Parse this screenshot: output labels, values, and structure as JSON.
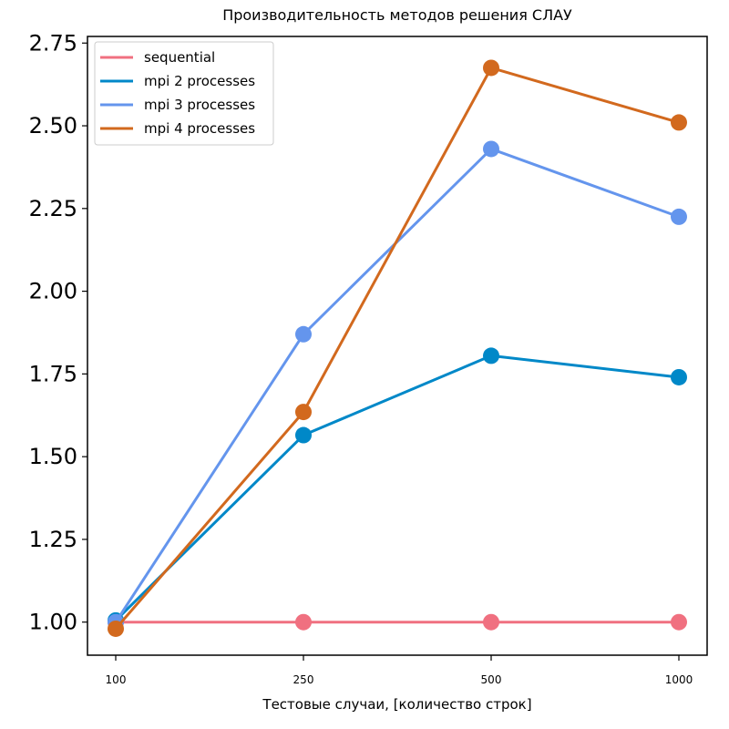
{
  "chart_data": {
    "type": "line",
    "title": "Производительность методов решения СЛАУ",
    "xlabel": "Тестовые случаи, [количество строк]",
    "ylabel": "",
    "categories": [
      "100",
      "250",
      "500",
      "1000"
    ],
    "ylim": [
      0.9,
      2.77
    ],
    "yticks": [
      "1.00",
      "1.25",
      "1.50",
      "1.75",
      "2.00",
      "2.25",
      "2.50",
      "2.75"
    ],
    "grid": false,
    "legend_position": "top-left",
    "series": [
      {
        "name": "sequential",
        "color": "#f07080",
        "values": [
          1.0,
          1.0,
          1.0,
          1.0
        ]
      },
      {
        "name": "mpi 2 processes",
        "color": "#0088c8",
        "values": [
          1.005,
          1.565,
          1.805,
          1.74
        ]
      },
      {
        "name": "mpi 3 processes",
        "color": "#6495ed",
        "values": [
          1.0,
          1.87,
          2.43,
          2.225
        ]
      },
      {
        "name": "mpi 4 processes",
        "color": "#d2691e",
        "values": [
          0.98,
          1.635,
          2.675,
          2.51
        ]
      }
    ]
  }
}
